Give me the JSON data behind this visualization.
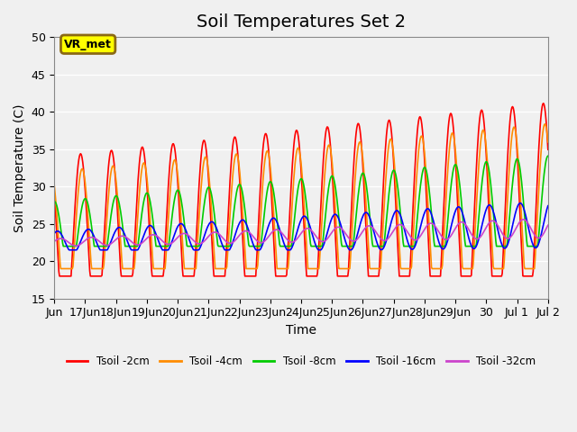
{
  "title": "Soil Temperatures Set 2",
  "xlabel": "Time",
  "ylabel": "Soil Temperature (C)",
  "ylim": [
    15,
    50
  ],
  "yticks": [
    15,
    20,
    25,
    30,
    35,
    40,
    45,
    50
  ],
  "series_colors": [
    "#FF0000",
    "#FF8C00",
    "#00CC00",
    "#0000FF",
    "#CC44CC"
  ],
  "series_labels": [
    "Tsoil -2cm",
    "Tsoil -4cm",
    "Tsoil -8cm",
    "Tsoil -16cm",
    "Tsoil -32cm"
  ],
  "background_color": "#F0F0F0",
  "plot_bg_color": "#F0F0F0",
  "annotation_text": "VR_met",
  "annotation_bg": "#FFFF00",
  "annotation_border": "#8B6914",
  "grid_color": "#FFFFFF",
  "title_fontsize": 14,
  "axis_fontsize": 10,
  "tick_fontsize": 9,
  "n_days": 16,
  "start_day": 16,
  "pts_per_day": 48
}
